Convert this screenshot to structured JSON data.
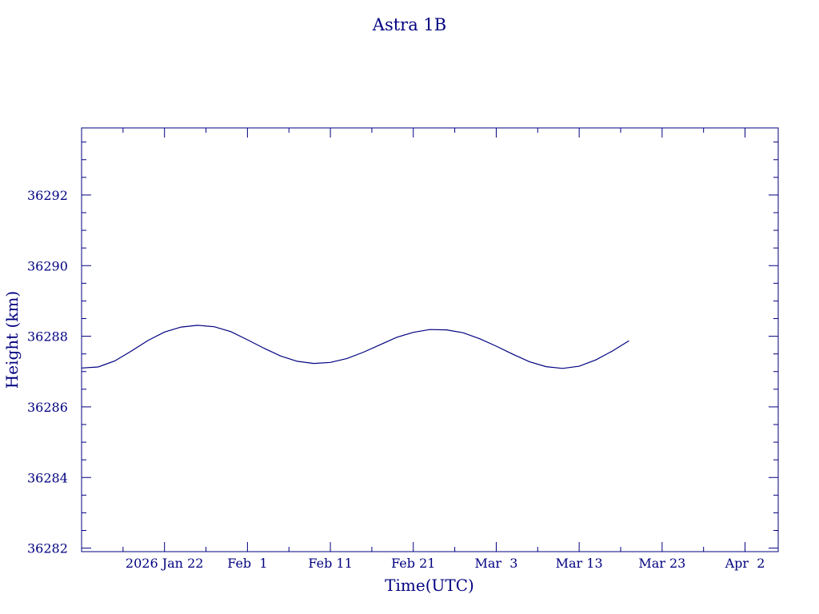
{
  "chart_data": {
    "type": "line",
    "title": "Astra 1B",
    "xlabel": "Time(UTC)",
    "ylabel": "Height (km)",
    "x_axis": {
      "kind": "date",
      "range": [
        "2026-01-12",
        "2026-04-06"
      ],
      "ticks": [
        {
          "date": "2026-01-22",
          "label": "2026 Jan 22"
        },
        {
          "date": "2026-02-01",
          "label": "Feb  1"
        },
        {
          "date": "2026-02-11",
          "label": "Feb 11"
        },
        {
          "date": "2026-02-21",
          "label": "Feb 21"
        },
        {
          "date": "2026-03-03",
          "label": "Mar  3"
        },
        {
          "date": "2026-03-13",
          "label": "Mar 13"
        },
        {
          "date": "2026-03-23",
          "label": "Mar 23"
        },
        {
          "date": "2026-04-02",
          "label": "Apr  2"
        }
      ]
    },
    "y_axis": {
      "range": [
        36281.9,
        36293.9
      ],
      "major_ticks": [
        36282,
        36284,
        36286,
        36288,
        36290,
        36292
      ],
      "tick_labels": [
        "36282",
        "36284",
        "36286",
        "36288",
        "36290",
        "36292"
      ],
      "minor_step": 0.5
    },
    "grid": false,
    "legend": "none",
    "color": "#000080",
    "series": [
      {
        "points": [
          [
            "2026-01-12",
            36287.1
          ],
          [
            "2026-01-14",
            36287.13
          ],
          [
            "2026-01-16",
            36287.3
          ],
          [
            "2026-01-18",
            36287.58
          ],
          [
            "2026-01-20",
            36287.88
          ],
          [
            "2026-01-22",
            36288.12
          ],
          [
            "2026-01-24",
            36288.26
          ],
          [
            "2026-01-26",
            36288.31
          ],
          [
            "2026-01-28",
            36288.27
          ],
          [
            "2026-01-30",
            36288.13
          ],
          [
            "2026-02-01",
            36287.9
          ],
          [
            "2026-02-03",
            36287.66
          ],
          [
            "2026-02-05",
            36287.44
          ],
          [
            "2026-02-07",
            36287.29
          ],
          [
            "2026-02-09",
            36287.23
          ],
          [
            "2026-02-11",
            36287.26
          ],
          [
            "2026-02-13",
            36287.37
          ],
          [
            "2026-02-15",
            36287.55
          ],
          [
            "2026-02-17",
            36287.76
          ],
          [
            "2026-02-19",
            36287.97
          ],
          [
            "2026-02-21",
            36288.11
          ],
          [
            "2026-02-23",
            36288.19
          ],
          [
            "2026-02-25",
            36288.18
          ],
          [
            "2026-02-27",
            36288.1
          ],
          [
            "2026-03-01",
            36287.93
          ],
          [
            "2026-03-03",
            36287.72
          ],
          [
            "2026-03-05",
            36287.49
          ],
          [
            "2026-03-07",
            36287.28
          ],
          [
            "2026-03-09",
            36287.14
          ],
          [
            "2026-03-11",
            36287.09
          ],
          [
            "2026-03-13",
            36287.15
          ],
          [
            "2026-03-15",
            36287.33
          ],
          [
            "2026-03-17",
            36287.58
          ],
          [
            "2026-03-19",
            36287.87
          ]
        ]
      }
    ]
  }
}
